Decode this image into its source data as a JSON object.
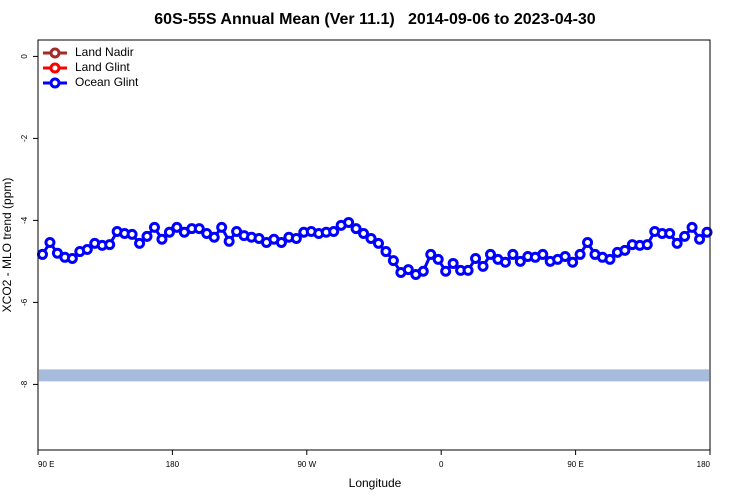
{
  "chart_data": {
    "type": "line",
    "title": "60S-55S Annual Mean (Ver 11.1)   2014-09-06 to 2023-04-30",
    "xlabel": "Longitude",
    "ylabel": "XCO2 - MLO trend (ppm)",
    "xlim": [
      90,
      540
    ],
    "xticks": [
      {
        "value": 90,
        "label": "90 E"
      },
      {
        "value": 180,
        "label": "180"
      },
      {
        "value": 270,
        "label": "90 W"
      },
      {
        "value": 360,
        "label": "0"
      },
      {
        "value": 450,
        "label": "90 E"
      },
      {
        "value": 540,
        "label": "180"
      }
    ],
    "ylim": [
      -9.6,
      0.4
    ],
    "yticks": [
      0,
      -2,
      -4,
      -6,
      -8
    ],
    "legend": "top-left",
    "reference_band": {
      "value": -7.78,
      "color": "#a7bbdd"
    },
    "series": [
      {
        "name": "Land Nadir",
        "color": "#a52a2a",
        "x": [],
        "values": []
      },
      {
        "name": "Land Glint",
        "color": "#ff0000",
        "x": [],
        "values": []
      },
      {
        "name": "Ocean Glint",
        "color": "#0000ff",
        "x": [
          93,
          98,
          103,
          108,
          113,
          118,
          123,
          128,
          133,
          138,
          143,
          148,
          153,
          158,
          163,
          168,
          173,
          178,
          183,
          188,
          193,
          198,
          203,
          208,
          213,
          218,
          223,
          228,
          233,
          238,
          243,
          248,
          253,
          258,
          263,
          268,
          273,
          278,
          283,
          288,
          293,
          298,
          303,
          308,
          313,
          318,
          323,
          328,
          333,
          338,
          343,
          348,
          353,
          358,
          363,
          368,
          373,
          378,
          383,
          388,
          393,
          398,
          403,
          408,
          413,
          418,
          423,
          428,
          433,
          438,
          443,
          448,
          453,
          458,
          463,
          468,
          473,
          478,
          483,
          488,
          493,
          498,
          503,
          508,
          513,
          518,
          523,
          528,
          533,
          538
        ],
        "values": [
          -4.83,
          -4.54,
          -4.8,
          -4.9,
          -4.93,
          -4.76,
          -4.71,
          -4.56,
          -4.61,
          -4.59,
          -4.27,
          -4.32,
          -4.34,
          -4.56,
          -4.39,
          -4.17,
          -4.46,
          -4.29,
          -4.17,
          -4.29,
          -4.2,
          -4.2,
          -4.32,
          -4.41,
          -4.17,
          -4.51,
          -4.27,
          -4.37,
          -4.41,
          -4.44,
          -4.54,
          -4.46,
          -4.54,
          -4.41,
          -4.44,
          -4.29,
          -4.27,
          -4.32,
          -4.29,
          -4.27,
          -4.12,
          -4.05,
          -4.2,
          -4.32,
          -4.44,
          -4.56,
          -4.76,
          -4.98,
          -5.27,
          -5.2,
          -5.32,
          -5.24,
          -4.83,
          -4.95,
          -5.24,
          -5.05,
          -5.22,
          -5.22,
          -4.93,
          -5.12,
          -4.83,
          -4.95,
          -5.02,
          -4.83,
          -5.0,
          -4.88,
          -4.9,
          -4.83,
          -5.0,
          -4.95,
          -4.88,
          -5.02,
          -4.83,
          -4.54,
          -4.83,
          -4.9,
          -4.95,
          -4.78,
          -4.73,
          -4.59,
          -4.61,
          -4.59,
          -4.27,
          -4.32,
          -4.32,
          -4.56,
          -4.39,
          -4.17,
          -4.46,
          -4.29
        ]
      }
    ]
  }
}
